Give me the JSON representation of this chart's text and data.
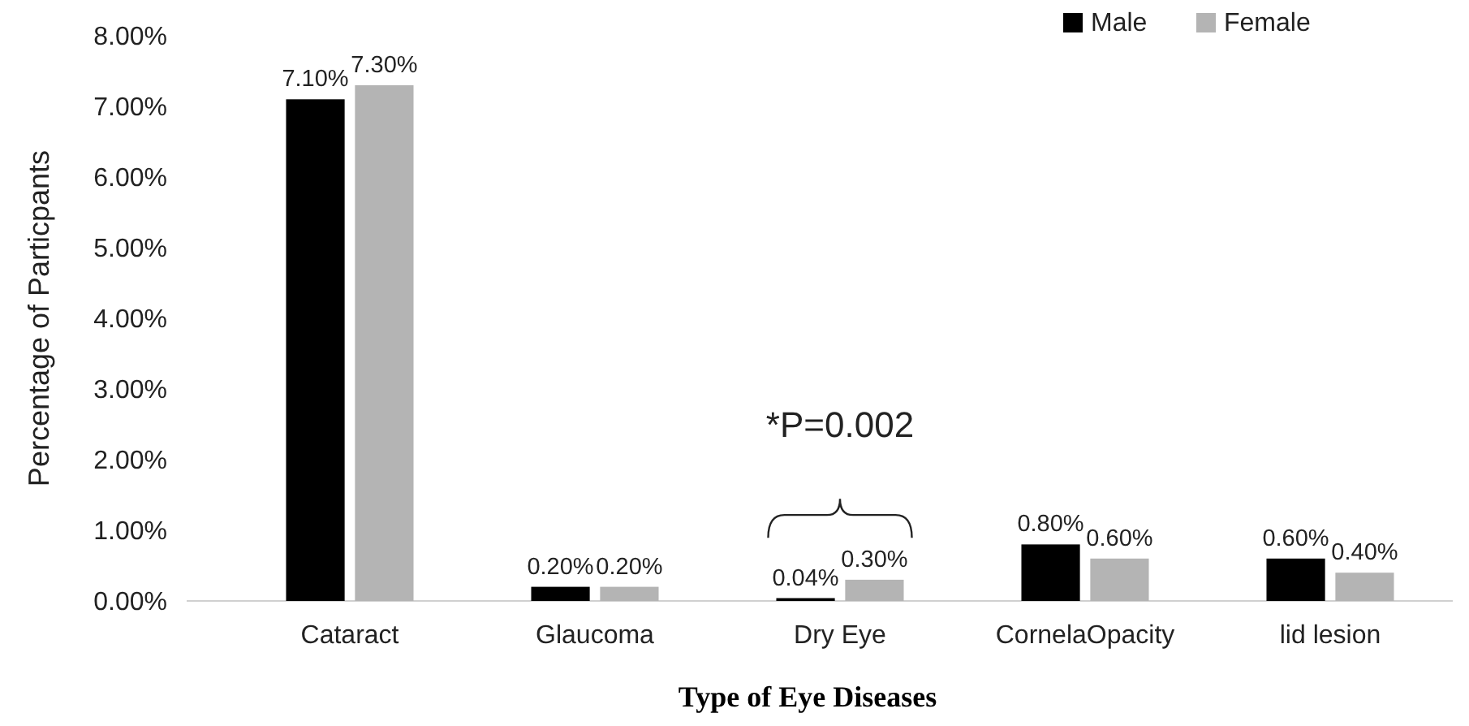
{
  "chart_data": {
    "type": "bar",
    "xlabel": "Type of Eye Diseases",
    "ylabel": "Percentage of Particpants",
    "categories": [
      "Cataract",
      "Glaucoma",
      "Dry Eye",
      "CornelaOpacity",
      "lid lesion"
    ],
    "series": [
      {
        "name": "Male",
        "color": "#000000",
        "values": [
          7.1,
          0.2,
          0.04,
          0.8,
          0.6
        ],
        "value_labels": [
          "7.10%",
          "0.20%",
          "0.04%",
          "0.80%",
          "0.60%"
        ]
      },
      {
        "name": "Female",
        "color": "#b4b4b4",
        "values": [
          7.3,
          0.2,
          0.3,
          0.6,
          0.4
        ],
        "value_labels": [
          "7.30%",
          "0.20%",
          "0.30%",
          "0.60%",
          "0.40%"
        ]
      }
    ],
    "ylim": [
      0,
      8
    ],
    "yticks": [
      {
        "value": 0,
        "label": "0.00%"
      },
      {
        "value": 1,
        "label": "1.00%"
      },
      {
        "value": 2,
        "label": "2.00%"
      },
      {
        "value": 3,
        "label": "3.00%"
      },
      {
        "value": 4,
        "label": "4.00%"
      },
      {
        "value": 5,
        "label": "5.00%"
      },
      {
        "value": 6,
        "label": "6.00%"
      },
      {
        "value": 7,
        "label": "7.00%"
      },
      {
        "value": 8,
        "label": "8.00%"
      }
    ],
    "annotations": [
      "*P=0.002"
    ],
    "legend": "top right",
    "grid": false
  }
}
